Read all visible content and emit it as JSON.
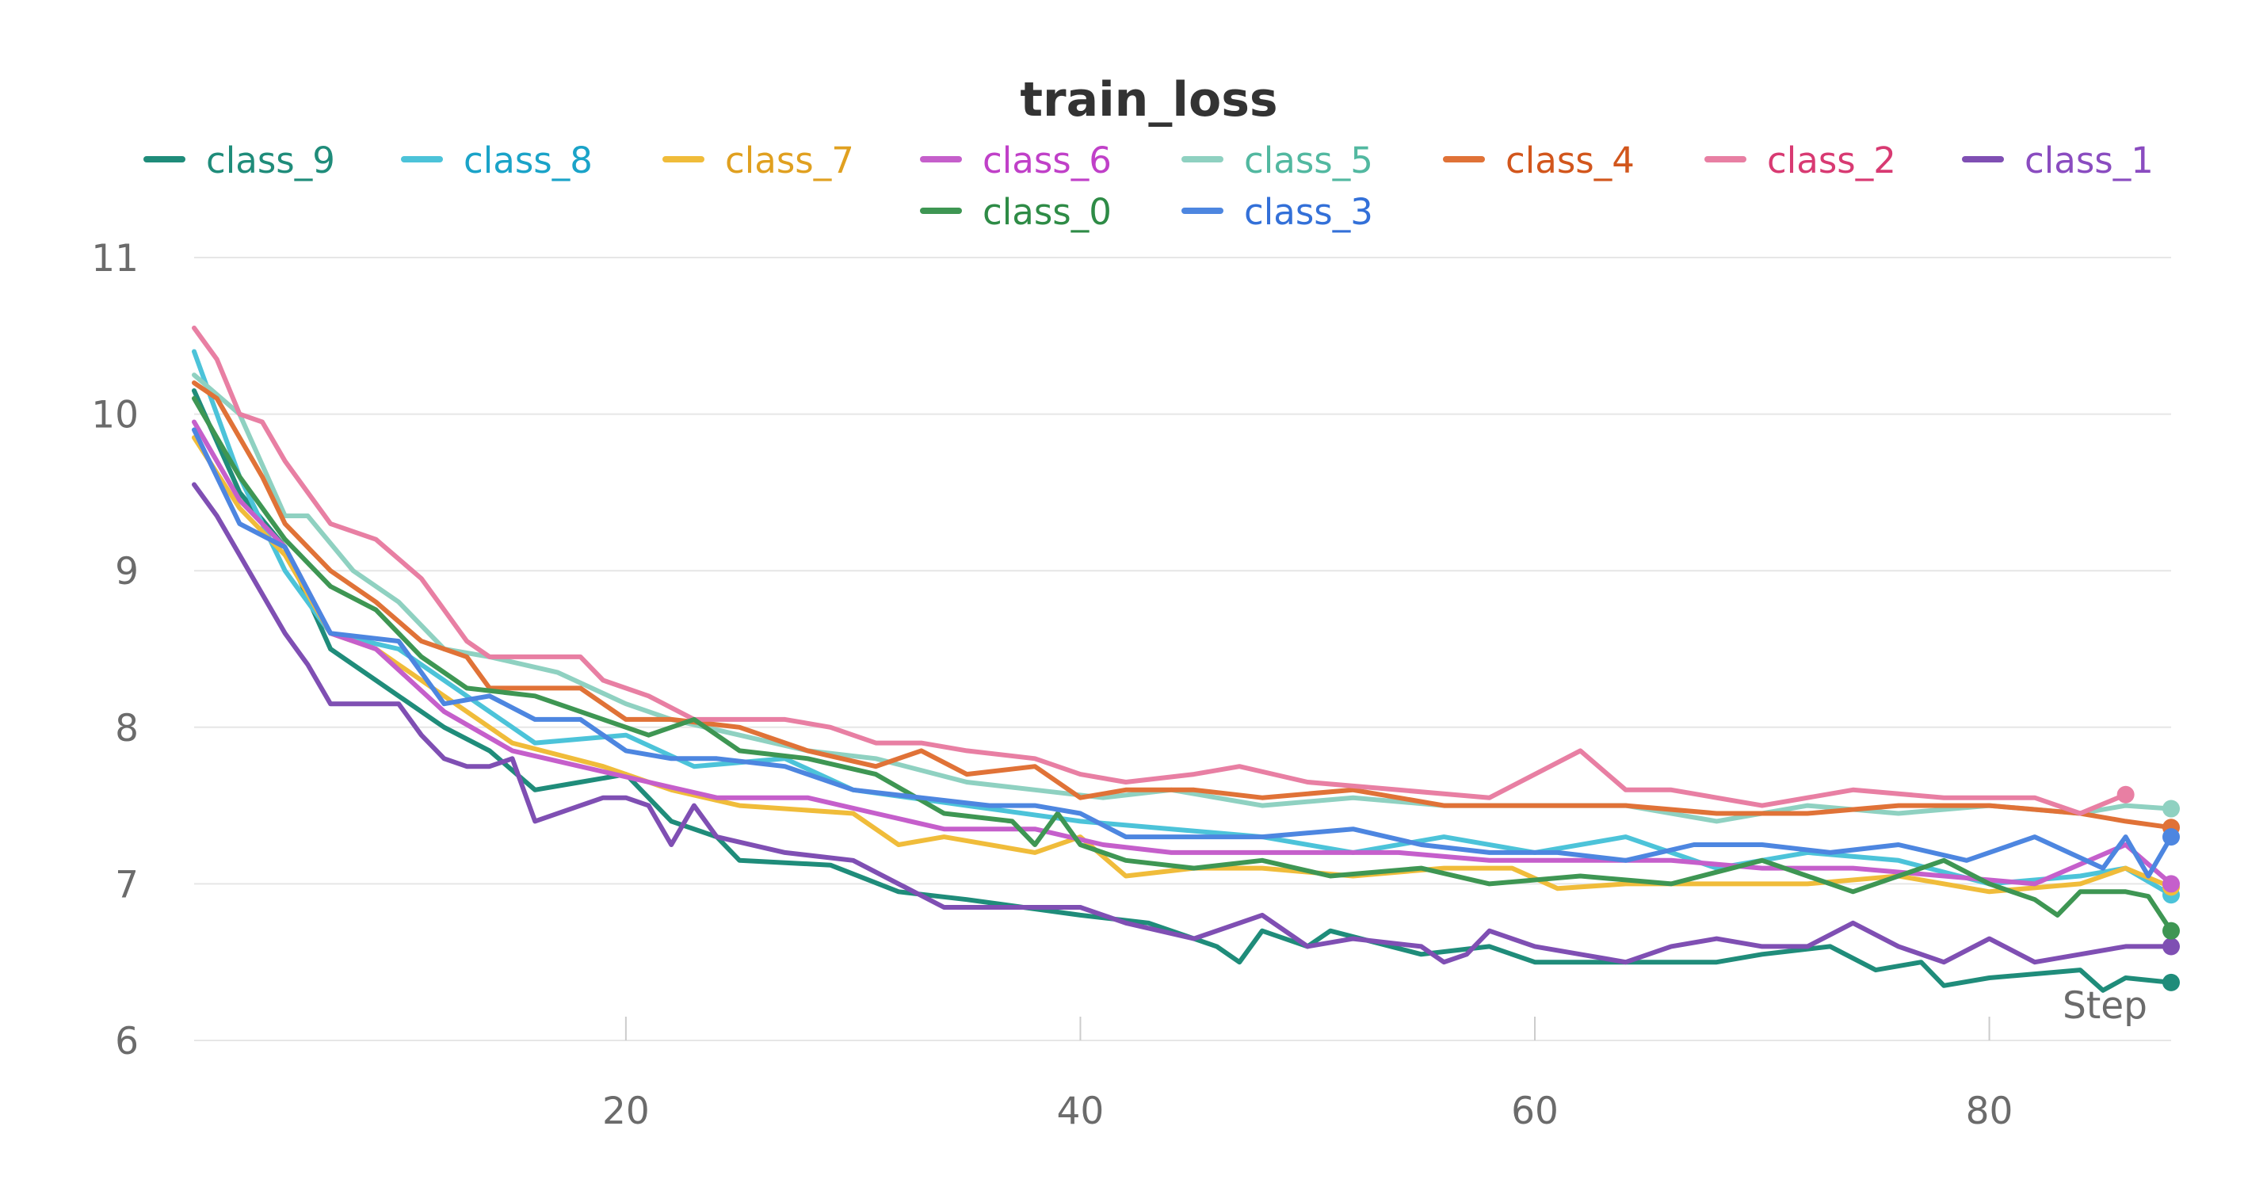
{
  "chart_data": {
    "type": "line",
    "title": "train_loss",
    "xlabel": "Step",
    "ylabel": "",
    "xlim": [
      1,
      88
    ],
    "ylim": [
      6,
      11
    ],
    "x_ticks": [
      20,
      40,
      60,
      80
    ],
    "y_ticks": [
      6,
      7,
      8,
      9,
      10,
      11
    ],
    "grid": true,
    "legend_position": "top",
    "series": [
      {
        "name": "class_9",
        "color": "#1f8c7a",
        "text_color": "#1f8c7a",
        "x": [
          1,
          3,
          5,
          7,
          9,
          12,
          14,
          16,
          18,
          20,
          22,
          24,
          25,
          29,
          32,
          35,
          40,
          43,
          46,
          47,
          48,
          50,
          51,
          55,
          58,
          60,
          64,
          68,
          70,
          73,
          75,
          77,
          78,
          80,
          84,
          85,
          86,
          88
        ],
        "y": [
          10.15,
          9.5,
          9.15,
          8.5,
          8.3,
          8.0,
          7.85,
          7.6,
          7.65,
          7.7,
          7.4,
          7.3,
          7.15,
          7.12,
          6.95,
          6.9,
          6.8,
          6.75,
          6.6,
          6.5,
          6.7,
          6.6,
          6.7,
          6.55,
          6.6,
          6.5,
          6.5,
          6.5,
          6.55,
          6.6,
          6.45,
          6.5,
          6.35,
          6.4,
          6.45,
          6.32,
          6.4,
          6.37
        ]
      },
      {
        "name": "class_8",
        "color": "#4cc3d9",
        "text_color": "#1aa3c8",
        "x": [
          1,
          3,
          5,
          7,
          10,
          13,
          16,
          20,
          23,
          27,
          30,
          35,
          40,
          44,
          48,
          52,
          56,
          60,
          64,
          68,
          72,
          76,
          80,
          84,
          86,
          88
        ],
        "y": [
          10.4,
          9.6,
          9.0,
          8.6,
          8.5,
          8.2,
          7.9,
          7.95,
          7.75,
          7.8,
          7.6,
          7.5,
          7.4,
          7.35,
          7.3,
          7.2,
          7.3,
          7.2,
          7.3,
          7.1,
          7.2,
          7.15,
          7.0,
          7.05,
          7.1,
          6.93
        ]
      },
      {
        "name": "class_7",
        "color": "#f0bc3a",
        "text_color": "#e0a020",
        "x": [
          1,
          3,
          5,
          7,
          9,
          12,
          15,
          19,
          22,
          25,
          30,
          32,
          34,
          38,
          40,
          42,
          45,
          48,
          52,
          56,
          59,
          61,
          64,
          68,
          72,
          76,
          80,
          84,
          86,
          88
        ],
        "y": [
          9.85,
          9.4,
          9.1,
          8.6,
          8.5,
          8.2,
          7.9,
          7.75,
          7.6,
          7.5,
          7.45,
          7.25,
          7.3,
          7.2,
          7.3,
          7.05,
          7.1,
          7.1,
          7.05,
          7.1,
          7.1,
          6.97,
          7.0,
          7.0,
          7.0,
          7.05,
          6.95,
          7.0,
          7.1,
          6.98
        ]
      },
      {
        "name": "class_6",
        "color": "#c55fcb",
        "text_color": "#c040c8",
        "x": [
          1,
          3,
          5,
          7,
          9,
          12,
          15,
          18,
          21,
          24,
          28,
          31,
          34,
          38,
          41,
          44,
          47,
          50,
          54,
          58,
          62,
          66,
          70,
          74,
          78,
          82,
          86,
          88
        ],
        "y": [
          9.95,
          9.45,
          9.15,
          8.6,
          8.5,
          8.1,
          7.85,
          7.75,
          7.65,
          7.55,
          7.55,
          7.45,
          7.35,
          7.35,
          7.25,
          7.2,
          7.2,
          7.2,
          7.2,
          7.15,
          7.15,
          7.15,
          7.1,
          7.1,
          7.05,
          7.0,
          7.25,
          7.0
        ]
      },
      {
        "name": "class_5",
        "color": "#8fd1c1",
        "text_color": "#52b8a0",
        "x": [
          1,
          3,
          5,
          6,
          8,
          10,
          12,
          14,
          17,
          20,
          22,
          25,
          28,
          31,
          35,
          38,
          41,
          44,
          48,
          52,
          56,
          60,
          64,
          68,
          72,
          76,
          80,
          84,
          86,
          88
        ],
        "y": [
          10.25,
          10.0,
          9.35,
          9.35,
          9.0,
          8.8,
          8.5,
          8.45,
          8.35,
          8.15,
          8.05,
          7.95,
          7.85,
          7.8,
          7.65,
          7.6,
          7.55,
          7.6,
          7.5,
          7.55,
          7.5,
          7.5,
          7.5,
          7.4,
          7.5,
          7.45,
          7.5,
          7.45,
          7.5,
          7.48
        ]
      },
      {
        "name": "class_4",
        "color": "#e07237",
        "text_color": "#d2561c",
        "x": [
          1,
          2,
          4,
          5,
          7,
          9,
          11,
          13,
          14,
          16,
          18,
          19,
          20,
          22,
          25,
          28,
          31,
          33,
          35,
          38,
          40,
          42,
          45,
          48,
          52,
          56,
          60,
          64,
          68,
          72,
          76,
          80,
          84,
          86,
          88
        ],
        "y": [
          10.2,
          10.1,
          9.6,
          9.3,
          9.0,
          8.8,
          8.55,
          8.45,
          8.25,
          8.25,
          8.25,
          8.15,
          8.05,
          8.05,
          8.0,
          7.85,
          7.75,
          7.85,
          7.7,
          7.75,
          7.55,
          7.6,
          7.6,
          7.55,
          7.6,
          7.5,
          7.5,
          7.5,
          7.45,
          7.45,
          7.5,
          7.5,
          7.45,
          7.4,
          7.36
        ]
      },
      {
        "name": "class_2",
        "color": "#e87fa3",
        "text_color": "#d83a72",
        "x": [
          1,
          2,
          3,
          4,
          5,
          7,
          9,
          11,
          12,
          13,
          14,
          15,
          17,
          18,
          19,
          21,
          23,
          25,
          27,
          29,
          31,
          33,
          35,
          38,
          40,
          42,
          45,
          47,
          50,
          54,
          58,
          62,
          64,
          66,
          70,
          74,
          78,
          82,
          84,
          86
        ],
        "y": [
          10.55,
          10.35,
          10.0,
          9.95,
          9.7,
          9.3,
          9.2,
          8.95,
          8.75,
          8.55,
          8.45,
          8.45,
          8.45,
          8.45,
          8.3,
          8.2,
          8.05,
          8.05,
          8.05,
          8.0,
          7.9,
          7.9,
          7.85,
          7.8,
          7.7,
          7.65,
          7.7,
          7.75,
          7.65,
          7.6,
          7.55,
          7.85,
          7.6,
          7.6,
          7.5,
          7.6,
          7.55,
          7.55,
          7.45,
          7.57
        ]
      },
      {
        "name": "class_1",
        "color": "#7f4fb3",
        "text_color": "#8a4cc0",
        "x": [
          1,
          2,
          3,
          4,
          5,
          6,
          7,
          8,
          10,
          11,
          12,
          13,
          14,
          15,
          16,
          18,
          19,
          20,
          21,
          22,
          23,
          24,
          27,
          30,
          32,
          34,
          38,
          40,
          42,
          45,
          48,
          50,
          52,
          55,
          56,
          57,
          58,
          60,
          62,
          64,
          66,
          68,
          70,
          72,
          74,
          76,
          78,
          80,
          82,
          84,
          86,
          88
        ],
        "y": [
          9.55,
          9.35,
          9.1,
          8.85,
          8.6,
          8.4,
          8.15,
          8.15,
          8.15,
          7.95,
          7.8,
          7.75,
          7.75,
          7.8,
          7.4,
          7.5,
          7.55,
          7.55,
          7.5,
          7.25,
          7.5,
          7.3,
          7.2,
          7.15,
          7.0,
          6.85,
          6.85,
          6.85,
          6.75,
          6.65,
          6.8,
          6.6,
          6.65,
          6.6,
          6.5,
          6.55,
          6.7,
          6.6,
          6.55,
          6.5,
          6.6,
          6.65,
          6.6,
          6.6,
          6.75,
          6.6,
          6.5,
          6.65,
          6.5,
          6.55,
          6.6,
          6.6
        ]
      },
      {
        "name": "class_0",
        "color": "#3e9653",
        "text_color": "#2e8b46",
        "x": [
          1,
          3,
          5,
          7,
          9,
          11,
          13,
          16,
          19,
          21,
          23,
          25,
          28,
          31,
          34,
          37,
          38,
          39,
          40,
          42,
          45,
          48,
          51,
          55,
          58,
          62,
          66,
          70,
          74,
          76,
          78,
          80,
          82,
          83,
          84,
          86,
          87,
          88
        ],
        "y": [
          10.1,
          9.6,
          9.2,
          8.9,
          8.75,
          8.45,
          8.25,
          8.2,
          8.05,
          7.95,
          8.05,
          7.85,
          7.8,
          7.7,
          7.45,
          7.4,
          7.25,
          7.45,
          7.25,
          7.15,
          7.1,
          7.15,
          7.05,
          7.1,
          7.0,
          7.05,
          7.0,
          7.15,
          6.95,
          7.05,
          7.15,
          7.0,
          6.9,
          6.8,
          6.95,
          6.95,
          6.92,
          6.7
        ]
      },
      {
        "name": "class_3",
        "color": "#4d86e0",
        "text_color": "#3370d8",
        "x": [
          1,
          3,
          5,
          7,
          10,
          12,
          14,
          16,
          18,
          20,
          22,
          24,
          27,
          30,
          33,
          36,
          38,
          40,
          42,
          45,
          48,
          52,
          55,
          58,
          61,
          64,
          67,
          70,
          73,
          76,
          79,
          82,
          85,
          86,
          87,
          88
        ],
        "y": [
          9.9,
          9.3,
          9.15,
          8.6,
          8.55,
          8.15,
          8.2,
          8.05,
          8.05,
          7.85,
          7.8,
          7.8,
          7.75,
          7.6,
          7.55,
          7.5,
          7.5,
          7.45,
          7.3,
          7.3,
          7.3,
          7.35,
          7.25,
          7.2,
          7.2,
          7.15,
          7.25,
          7.25,
          7.2,
          7.25,
          7.15,
          7.3,
          7.1,
          7.3,
          7.05,
          7.3
        ]
      }
    ]
  }
}
